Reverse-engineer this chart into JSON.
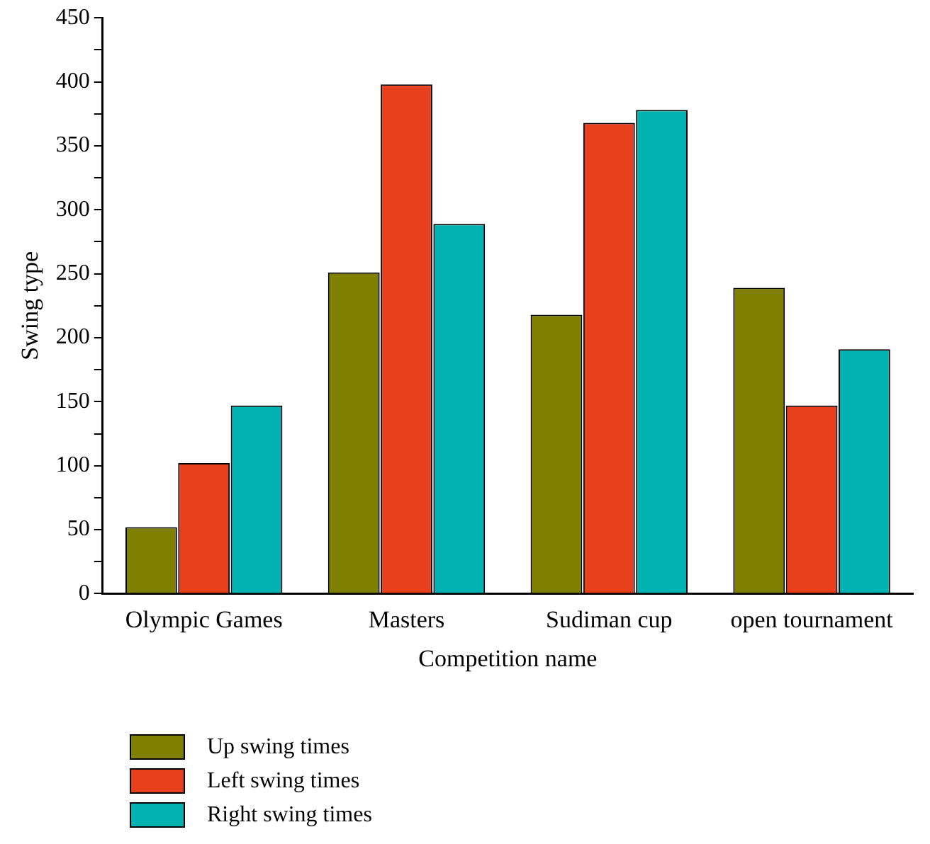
{
  "chart_data": {
    "type": "bar",
    "xlabel": "Competition name",
    "ylabel": "Swing type",
    "categories": [
      "Olympic Games",
      "Masters",
      "Sudiman cup",
      "open tournament"
    ],
    "series": [
      {
        "name": "Up swing times",
        "color": "#7f7f00",
        "values": [
          52,
          251,
          218,
          239
        ]
      },
      {
        "name": "Left swing times",
        "color": "#e8401c",
        "values": [
          102,
          398,
          368,
          147
        ]
      },
      {
        "name": "Right swing times",
        "color": "#00b2b2",
        "values": [
          147,
          289,
          378,
          191
        ]
      }
    ],
    "ylim": [
      0,
      450
    ],
    "yticks": [
      0,
      {
        "value": 25,
        "label": null
      },
      50,
      {
        "value": 75,
        "label": null
      },
      100,
      {
        "value": 125,
        "label": null
      },
      150,
      {
        "value": 175,
        "label": null
      },
      200,
      {
        "value": 225,
        "label": null
      },
      250,
      {
        "value": 275,
        "label": null
      },
      300,
      {
        "value": 325,
        "label": null
      },
      350,
      {
        "value": 375,
        "label": null
      },
      400,
      {
        "value": 425,
        "label": null
      },
      450
    ],
    "grid": false,
    "legend": "bottom left"
  }
}
